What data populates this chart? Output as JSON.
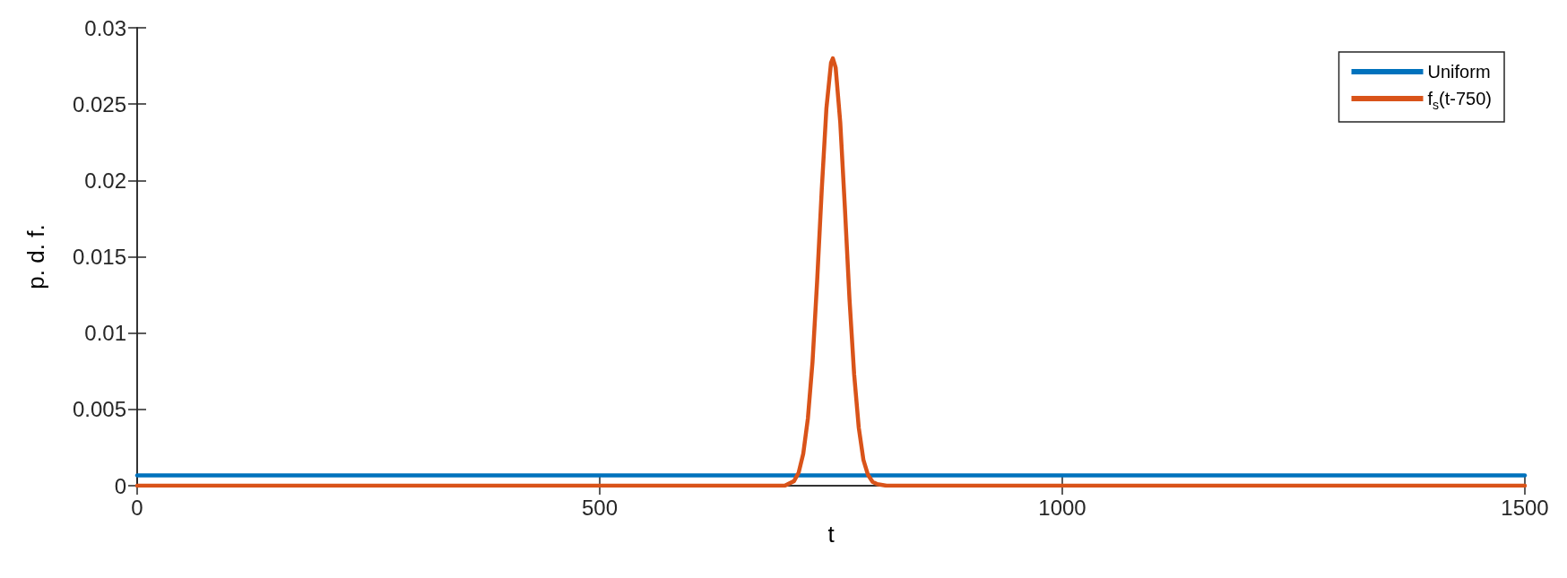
{
  "chart_data": {
    "type": "line",
    "xlabel": "t",
    "ylabel": "p. d. f.",
    "xlim": [
      0,
      1500
    ],
    "xticks": [
      0,
      500,
      1000,
      1500
    ],
    "ylim": [
      0,
      0.03
    ],
    "yticks": [
      0,
      0.005,
      0.01,
      0.015,
      0.02,
      0.025,
      0.03
    ],
    "grid": false,
    "legend": "top right",
    "marker": "none",
    "line_style": "solid",
    "series": [
      {
        "name": "Uniform",
        "color": "#0072bd",
        "x": [
          0,
          1500
        ],
        "values": [
          0.00067,
          0.00067
        ]
      },
      {
        "name": "f$_{s}$(t-750)",
        "color": "#d95319",
        "x": [
          0,
          700,
          710,
          715,
          720,
          725,
          730,
          735,
          740,
          745,
          750,
          752,
          755,
          760,
          765,
          770,
          775,
          780,
          785,
          790,
          795,
          800,
          810,
          1500
        ],
        "values": [
          0,
          0,
          0.0003,
          0.00085,
          0.0021,
          0.0044,
          0.0081,
          0.0134,
          0.0194,
          0.0247,
          0.0277,
          0.028,
          0.0274,
          0.0238,
          0.0182,
          0.0122,
          0.0073,
          0.0038,
          0.0017,
          0.0007,
          0.00025,
          0.0001,
          0,
          0
        ]
      }
    ]
  }
}
